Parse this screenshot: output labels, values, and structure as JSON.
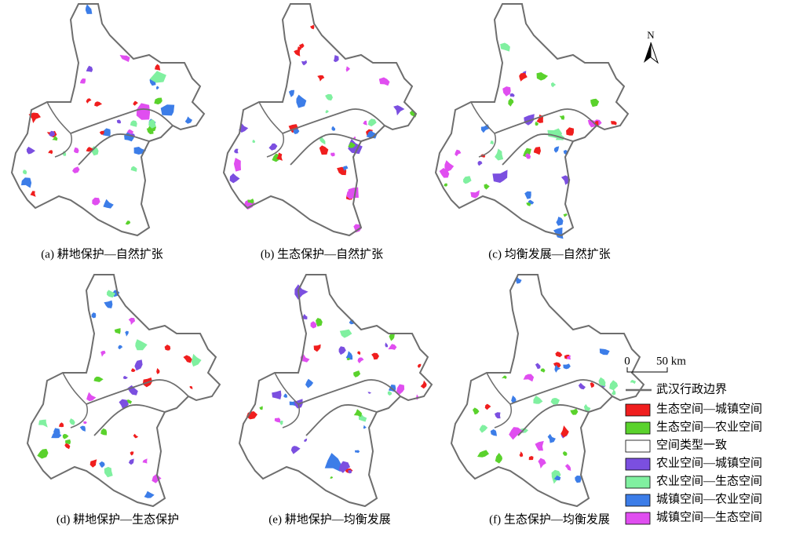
{
  "panels": [
    {
      "caption": "(a) 耕地保护—自然扩张"
    },
    {
      "caption": "(b) 生态保护—自然扩张"
    },
    {
      "caption": "(c) 均衡发展—自然扩张"
    },
    {
      "caption": "(d) 耕地保护—生态保护"
    },
    {
      "caption": "(e) 耕地保护—均衡发展"
    },
    {
      "caption": "(f) 生态保护—均衡发展"
    }
  ],
  "north_arrow": "N",
  "scale_bar": {
    "start": "0",
    "end": "50 km"
  },
  "legend": {
    "boundary": "武汉行政边界",
    "items": [
      {
        "label": "生态空间—城镇空间",
        "color": "#f01e1e"
      },
      {
        "label": "生态空间—农业空间",
        "color": "#5ad22c"
      },
      {
        "label": "空间类型一致",
        "color": "#ffffff"
      },
      {
        "label": "农业空间—城镇空间",
        "color": "#7b4fe0"
      },
      {
        "label": "农业空间—生态空间",
        "color": "#80f0a0"
      },
      {
        "label": "城镇空间—农业空间",
        "color": "#3c7de8"
      },
      {
        "label": "城镇空间—生态空间",
        "color": "#e04ef0"
      }
    ]
  }
}
